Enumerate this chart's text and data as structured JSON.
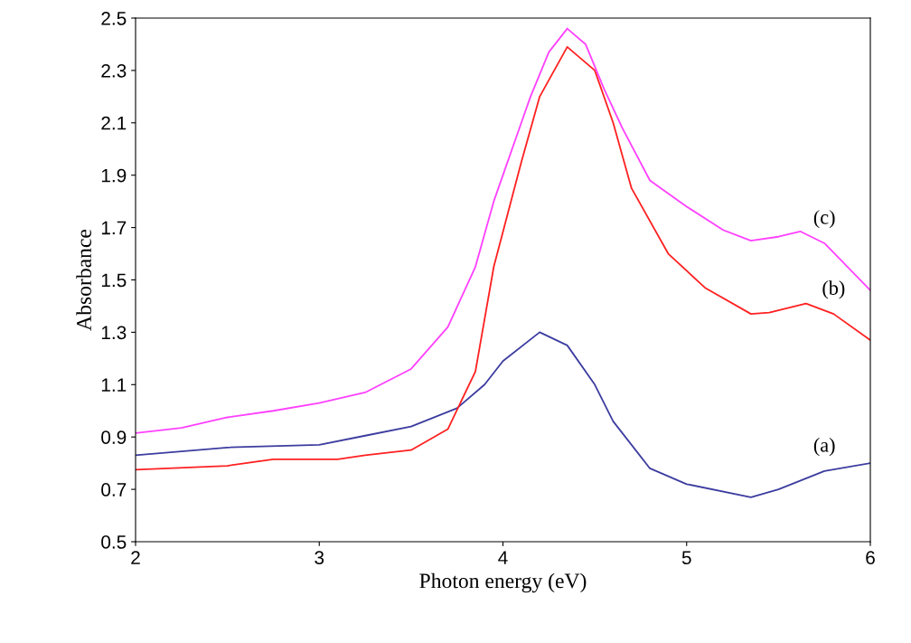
{
  "chart_data": {
    "type": "line",
    "xlabel": "Photon energy (eV)",
    "ylabel": "Absorbance",
    "xlim": [
      2,
      6
    ],
    "xticks": [
      2,
      3,
      4,
      5,
      6
    ],
    "ylim": [
      0.5,
      2.5
    ],
    "yticks": [
      0.5,
      0.7,
      0.9,
      1.1,
      1.3,
      1.5,
      1.7,
      1.9,
      2.1,
      2.3,
      2.5
    ],
    "grid": false,
    "legend": false,
    "marker": "none",
    "line_style": "solid",
    "series": [
      {
        "name": "(a)",
        "color": "#3c3ca0",
        "x": [
          2,
          2.5,
          3,
          3.25,
          3.5,
          3.75,
          3.9,
          4.0,
          4.2,
          4.35,
          4.5,
          4.6,
          4.8,
          5.0,
          5.35,
          5.5,
          5.75,
          6
        ],
        "values": [
          0.83,
          0.86,
          0.87,
          0.905,
          0.94,
          1.01,
          1.1,
          1.19,
          1.3,
          1.25,
          1.1,
          0.96,
          0.78,
          0.72,
          0.67,
          0.7,
          0.77,
          0.8
        ]
      },
      {
        "name": "(b)",
        "color": "#ff2020",
        "x": [
          2,
          2.5,
          2.75,
          3.1,
          3.25,
          3.5,
          3.7,
          3.85,
          3.95,
          4.1,
          4.2,
          4.35,
          4.5,
          4.6,
          4.7,
          4.9,
          5.1,
          5.35,
          5.45,
          5.65,
          5.8,
          6
        ],
        "values": [
          0.775,
          0.79,
          0.815,
          0.815,
          0.83,
          0.85,
          0.93,
          1.15,
          1.55,
          1.95,
          2.2,
          2.39,
          2.3,
          2.1,
          1.85,
          1.6,
          1.47,
          1.37,
          1.375,
          1.41,
          1.37,
          1.27
        ]
      },
      {
        "name": "(c)",
        "color": "#ff40ff",
        "x": [
          2,
          2.25,
          2.5,
          2.75,
          3,
          3.25,
          3.5,
          3.7,
          3.85,
          3.95,
          4.1,
          4.15,
          4.25,
          4.35,
          4.45,
          4.55,
          4.65,
          4.8,
          5.0,
          5.2,
          5.35,
          5.5,
          5.62,
          5.75,
          6
        ],
        "values": [
          0.915,
          0.935,
          0.975,
          1.0,
          1.03,
          1.07,
          1.16,
          1.32,
          1.55,
          1.8,
          2.1,
          2.2,
          2.37,
          2.46,
          2.4,
          2.23,
          2.08,
          1.88,
          1.78,
          1.69,
          1.65,
          1.665,
          1.685,
          1.64,
          1.46
        ]
      }
    ]
  }
}
